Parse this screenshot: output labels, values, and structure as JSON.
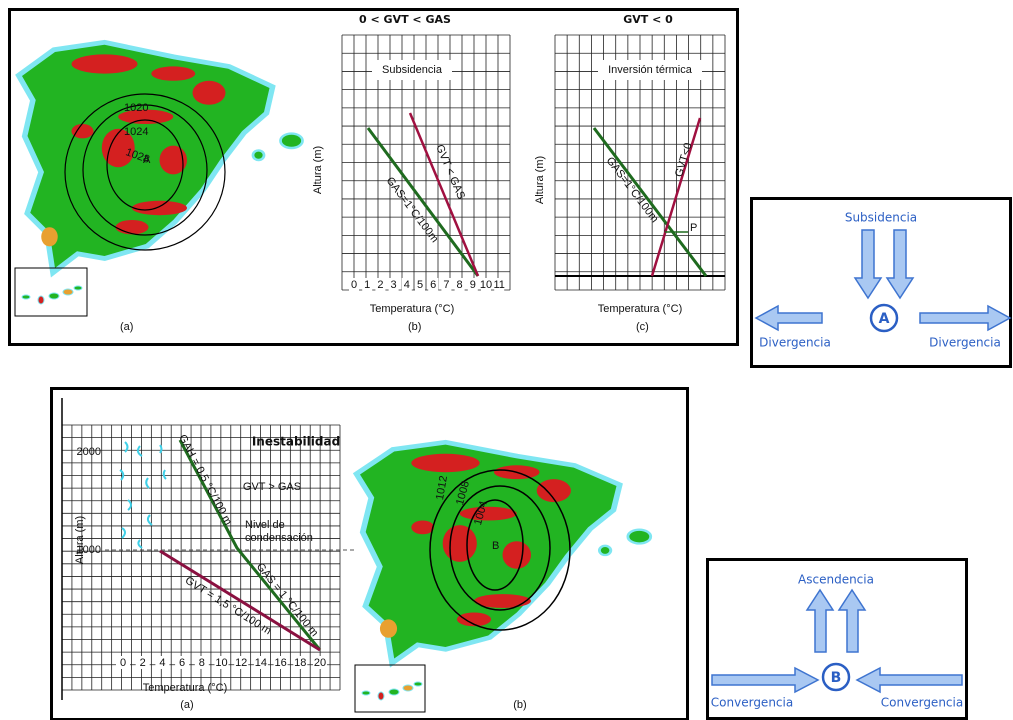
{
  "top_figure": {
    "map_a": {
      "isobars": [
        "1020",
        "1024",
        "1028"
      ],
      "center": "A",
      "label": "(a)"
    },
    "chart_b": {
      "title": "0 < GVT < GAS",
      "subtitle": "Subsidencia",
      "y_label": "Altura (m)",
      "x_label": "Temperatura (°C)",
      "x_ticks": [
        "0",
        "1",
        "2",
        "3",
        "4",
        "5",
        "6",
        "7",
        "8",
        "9",
        "10",
        "11"
      ],
      "gas_label": "GAS=1°C/100m",
      "gvt_label": "GVT < GAS",
      "label": "(b)"
    },
    "chart_c": {
      "title": "GVT < 0",
      "subtitle": "Inversión térmica",
      "y_label": "Altura (m)",
      "x_label": "Temperatura (°C)",
      "gas_label": "GAS=1°C/100m",
      "gvt_label": "GVT<0",
      "point": "P",
      "label": "(c)"
    }
  },
  "anticyclone": {
    "top": "Subsidencia",
    "center": "A",
    "left": "Divergencia",
    "right": "Divergencia"
  },
  "bottom_figure": {
    "chart_a": {
      "title": "Inestabilidad",
      "y_label": "Altura (m)",
      "y_ticks": [
        "2000",
        "1000"
      ],
      "x_ticks": [
        "0",
        "2",
        "4",
        "6",
        "8",
        "10",
        "12",
        "14",
        "16",
        "18",
        "20"
      ],
      "x_label": "Temperatura (°C)",
      "gah_label": "GAH = 0,5 °C/100 m",
      "comparison": "GVT > GAS",
      "condensation": [
        "Nivel de",
        "condensación"
      ],
      "gas_label": "GAS = 1 °C/100 m",
      "gvt_label": "GVT = 1,5 °C/100 m",
      "label": "(a)"
    },
    "map_b": {
      "isobars": [
        "1012",
        "1008",
        "1004"
      ],
      "center": "B",
      "label": "(b)"
    }
  },
  "cyclone": {
    "top": "Ascendencia",
    "center": "B",
    "left": "Convergencia",
    "right": "Convergencia"
  }
}
